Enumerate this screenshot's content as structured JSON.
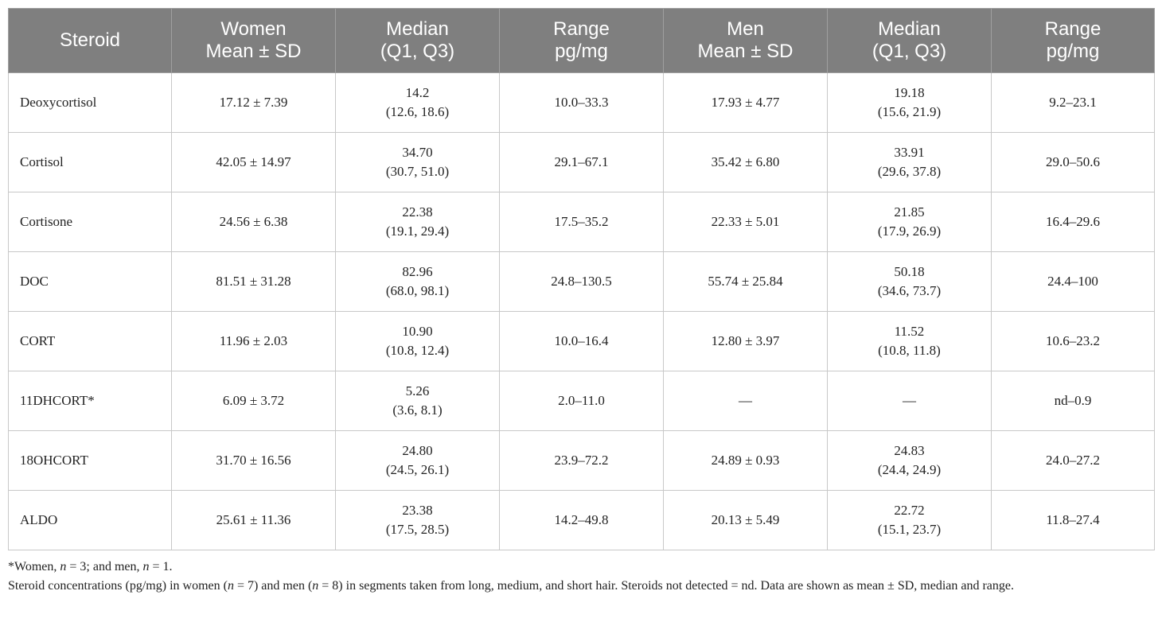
{
  "table": {
    "headers": [
      [
        "Steroid"
      ],
      [
        "Women",
        "Mean ± SD"
      ],
      [
        "Median",
        "(Q1, Q3)"
      ],
      [
        "Range",
        "pg/mg"
      ],
      [
        "Men",
        "Mean ± SD"
      ],
      [
        "Median",
        "(Q1, Q3)"
      ],
      [
        "Range",
        "pg/mg"
      ]
    ],
    "rows": [
      {
        "steroid": "Deoxycortisol",
        "w_mean": "17.12 ± 7.39",
        "w_median": "14.2",
        "w_q": "(12.6, 18.6)",
        "w_range": "10.0–33.3",
        "m_mean": "17.93 ± 4.77",
        "m_median": "19.18",
        "m_q": "(15.6, 21.9)",
        "m_range": "9.2–23.1"
      },
      {
        "steroid": "Cortisol",
        "w_mean": "42.05 ± 14.97",
        "w_median": "34.70",
        "w_q": "(30.7, 51.0)",
        "w_range": "29.1–67.1",
        "m_mean": "35.42 ± 6.80",
        "m_median": "33.91",
        "m_q": "(29.6, 37.8)",
        "m_range": "29.0–50.6"
      },
      {
        "steroid": "Cortisone",
        "w_mean": "24.56 ± 6.38",
        "w_median": "22.38",
        "w_q": "(19.1, 29.4)",
        "w_range": "17.5–35.2",
        "m_mean": "22.33 ± 5.01",
        "m_median": "21.85",
        "m_q": "(17.9, 26.9)",
        "m_range": "16.4–29.6"
      },
      {
        "steroid": "DOC",
        "w_mean": "81.51 ± 31.28",
        "w_median": "82.96",
        "w_q": "(68.0, 98.1)",
        "w_range": "24.8–130.5",
        "m_mean": "55.74 ± 25.84",
        "m_median": "50.18",
        "m_q": "(34.6, 73.7)",
        "m_range": "24.4–100"
      },
      {
        "steroid": "CORT",
        "w_mean": "11.96 ± 2.03",
        "w_median": "10.90",
        "w_q": "(10.8, 12.4)",
        "w_range": "10.0–16.4",
        "m_mean": "12.80 ± 3.97",
        "m_median": "11.52",
        "m_q": "(10.8, 11.8)",
        "m_range": "10.6–23.2"
      },
      {
        "steroid": "11DHCORT*",
        "w_mean": "6.09 ± 3.72",
        "w_median": "5.26",
        "w_q": "(3.6, 8.1)",
        "w_range": "2.0–11.0",
        "m_mean": "—",
        "m_median": "—",
        "m_q": "",
        "m_range": "nd–0.9"
      },
      {
        "steroid": "18OHCORT",
        "w_mean": "31.70 ± 16.56",
        "w_median": "24.80",
        "w_q": "(24.5, 26.1)",
        "w_range": "23.9–72.2",
        "m_mean": "24.89 ± 0.93",
        "m_median": "24.83",
        "m_q": "(24.4, 24.9)",
        "m_range": "24.0–27.2"
      },
      {
        "steroid": "ALDO",
        "w_mean": "25.61 ± 11.36",
        "w_median": "23.38",
        "w_q": "(17.5, 28.5)",
        "w_range": "14.2–49.8",
        "m_mean": "20.13 ± 5.49",
        "m_median": "22.72",
        "m_q": "(15.1, 23.7)",
        "m_range": "11.8–27.4"
      }
    ]
  },
  "footnotes": {
    "asterisk": {
      "a": "*Women, ",
      "n1": "n",
      "b": " = 3; and men, ",
      "n2": "n",
      "c": " = 1."
    },
    "caption": {
      "a": "Steroid concentrations (pg/mg) in women (",
      "n1": "n",
      "b": " = 7) and men (",
      "n2": "n",
      "c": " = 8) in segments taken from long, medium, and short hair. Steroids not detected = nd. Data are shown as mean ± SD, median and range."
    }
  }
}
